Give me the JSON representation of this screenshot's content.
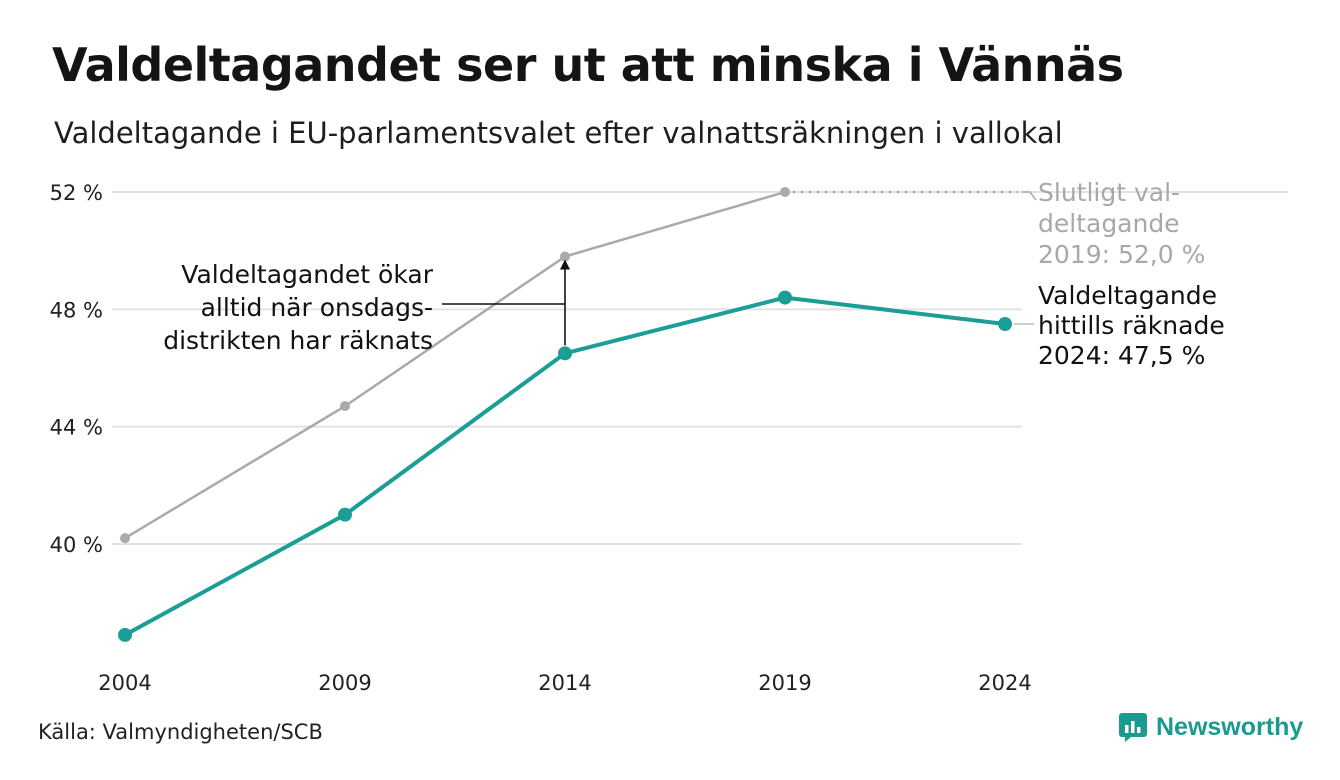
{
  "header": {
    "title": "Valdeltagandet ser ut att minska i Vännäs",
    "subtitle": "Valdeltagande i EU-parlamentsvalet efter valnattsräkningen i vallokal"
  },
  "footer": {
    "source": "Källa: Valmyndigheten/SCB",
    "brand": "Newsworthy"
  },
  "chart_data": {
    "type": "line",
    "x": [
      "2004",
      "2009",
      "2014",
      "2019",
      "2024"
    ],
    "y_ticks": [
      40,
      44,
      48,
      52
    ],
    "y_tick_labels": [
      "40 %",
      "44 %",
      "48 %",
      "52 %"
    ],
    "ylim": [
      36.7,
      52.6
    ],
    "grid": true,
    "series": [
      {
        "key": "final",
        "color": "#aaaaaa",
        "values": [
          40.2,
          44.7,
          49.8,
          52.0,
          null
        ]
      },
      {
        "key": "election_night",
        "color": "#1a9e96",
        "values": [
          36.9,
          41.0,
          46.5,
          48.4,
          47.5
        ]
      }
    ],
    "annotations": {
      "final_label": [
        "Slutligt val-",
        "deltagande",
        "2019: 52,0 %"
      ],
      "current_label": [
        "Valdeltagande",
        "hittills räknade",
        "2024: 47,5 %"
      ],
      "gap_label": [
        "Valdeltagandet ökar",
        "alltid när onsdags-",
        "distrikten har räknats"
      ]
    }
  }
}
